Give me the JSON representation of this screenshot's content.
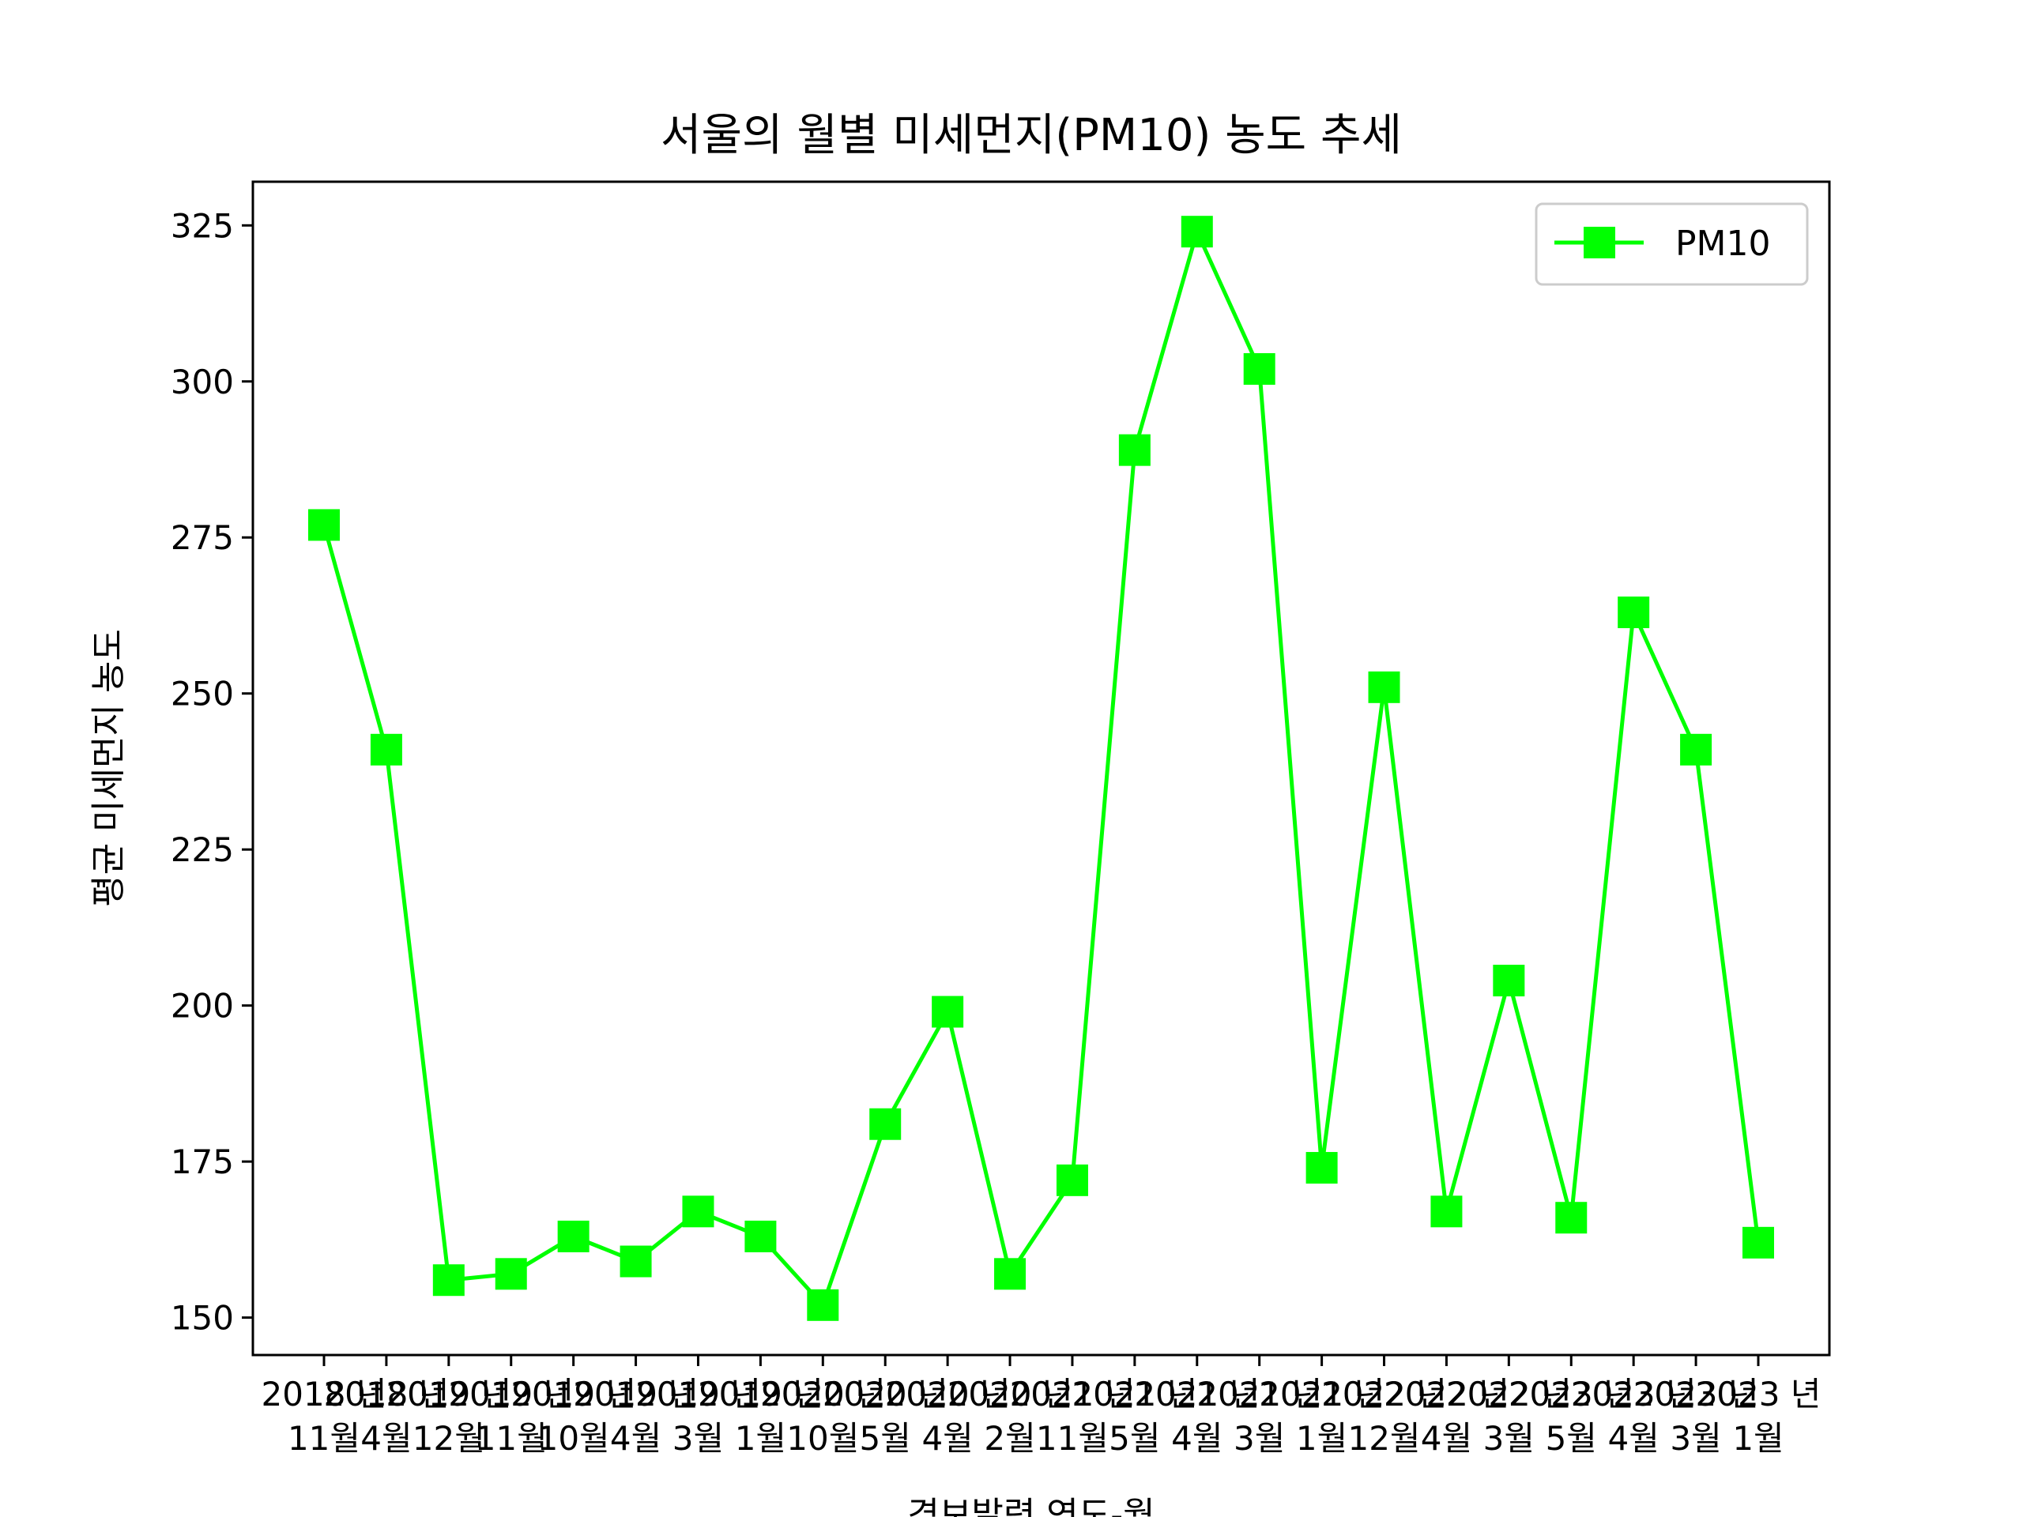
{
  "chart_data": {
    "type": "line",
    "title": "서울의 월별 미세먼지(PM10) 농도 추세",
    "xlabel": "경보발령 연도-월",
    "ylabel": "평균 미세먼지 농도",
    "ylim": [
      144,
      332
    ],
    "yticks": [
      150,
      175,
      200,
      225,
      250,
      275,
      300,
      325
    ],
    "grid": false,
    "legend_position": "upper right",
    "series_color": "#00ff00",
    "categories": [
      "2018 년\n11월",
      "2018 년\n4월",
      "2019 년\n12월",
      "2019 년\n11월",
      "2019 년\n10월",
      "2019 년\n4월",
      "2019 년\n3월",
      "2019 년\n1월",
      "2020 년\n10월",
      "2020 년\n5월",
      "2020 년\n4월",
      "2020 년\n2월",
      "2021 년\n11월",
      "2021 년\n5월",
      "2021 년\n4월",
      "2021 년\n3월",
      "2021 년\n1월",
      "2022 년\n12월",
      "2022 년\n4월",
      "2022 년\n3월",
      "2023 년\n5월",
      "2023 년\n4월",
      "2023 년\n3월",
      "2023 년\n1월"
    ],
    "series": [
      {
        "name": "PM10",
        "values": [
          277,
          241,
          156,
          157,
          163,
          159,
          167,
          163,
          152,
          181,
          199,
          157,
          172,
          289,
          324,
          302,
          174,
          251,
          167,
          204,
          166,
          263,
          241,
          162
        ]
      }
    ]
  }
}
